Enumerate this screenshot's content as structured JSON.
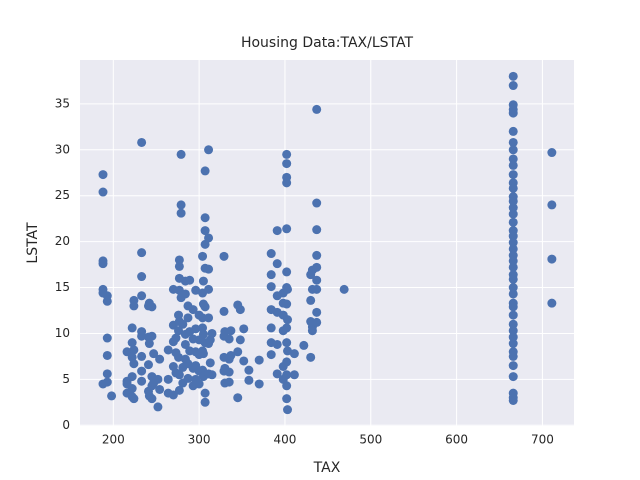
{
  "chart_data": {
    "type": "scatter",
    "title": "Housing Data:TAX/LSTAT",
    "x_label": "TAX",
    "y_label": "LSTAT",
    "x": [
      188,
      188,
      188,
      188,
      188,
      188,
      188,
      193,
      193,
      193,
      193,
      193,
      193,
      198,
      216,
      216,
      216,
      216,
      222,
      222,
      222,
      222,
      222,
      222,
      224,
      224,
      224,
      224,
      224,
      233,
      233,
      233,
      233,
      233,
      233,
      233,
      233,
      233,
      241,
      241,
      241,
      241,
      242,
      242,
      242,
      245,
      245,
      245,
      245,
      245,
      247,
      247,
      252,
      252,
      254,
      254,
      264,
      264,
      264,
      270,
      270,
      270,
      270,
      270,
      273,
      273,
      273,
      276,
      276,
      276,
      277,
      277,
      277,
      277,
      277,
      277,
      277,
      279,
      279,
      279,
      279,
      281,
      281,
      281,
      284,
      284,
      284,
      284,
      284,
      287,
      287,
      287,
      287,
      289,
      289,
      289,
      293,
      293,
      293,
      293,
      296,
      296,
      296,
      296,
      296,
      300,
      300,
      300,
      300,
      300,
      304,
      304,
      304,
      304,
      304,
      304,
      305,
      305,
      305,
      305,
      305,
      307,
      307,
      307,
      307,
      307,
      307,
      307,
      307,
      307,
      311,
      311,
      311,
      311,
      311,
      311,
      311,
      313,
      313,
      315,
      315,
      329,
      329,
      329,
      329,
      329,
      330,
      330,
      330,
      335,
      335,
      335,
      335,
      337,
      337,
      345,
      345,
      345,
      348,
      348,
      352,
      352,
      358,
      358,
      370,
      370,
      384,
      384,
      384,
      384,
      384,
      384,
      384,
      391,
      391,
      391,
      391,
      391,
      391,
      398,
      398,
      398,
      398,
      398,
      398,
      402,
      402,
      402,
      402,
      402,
      402,
      402,
      402,
      402,
      402,
      402,
      402,
      402,
      402,
      403,
      403,
      403,
      403,
      411,
      411,
      422,
      430,
      430,
      430,
      430,
      432,
      432,
      432,
      432,
      437,
      437,
      437,
      437,
      437,
      437,
      437,
      437,
      437,
      469,
      666,
      666,
      666,
      666,
      666,
      666,
      666,
      666,
      666,
      666,
      666,
      666,
      666,
      666,
      666,
      666,
      666,
      666,
      666,
      666,
      666,
      666,
      666,
      666,
      666,
      666,
      666,
      666,
      666,
      666,
      666,
      666,
      666,
      666,
      666,
      666,
      666,
      666,
      666,
      666,
      666,
      666,
      666,
      711,
      711,
      711,
      711
    ],
    "series": [
      {
        "name": "LSTAT",
        "color": "#4c72b0",
        "values": [
          27.3,
          25.4,
          17.9,
          17.6,
          14.8,
          14.4,
          4.5,
          14.1,
          13.5,
          9.5,
          7.6,
          5.6,
          4.7,
          3.2,
          8.0,
          4.8,
          4.5,
          3.5,
          10.6,
          9.0,
          7.4,
          5.3,
          4.0,
          3.1,
          13.6,
          13.0,
          8.2,
          6.7,
          2.9,
          30.8,
          18.8,
          16.2,
          14.1,
          10.2,
          9.7,
          7.5,
          5.9,
          4.8,
          13.0,
          9.6,
          6.6,
          3.7,
          13.3,
          8.9,
          3.2,
          12.9,
          9.7,
          5.3,
          4.3,
          2.9,
          7.8,
          4.6,
          5.0,
          2.0,
          7.2,
          3.9,
          8.2,
          5.0,
          3.5,
          10.9,
          9.1,
          6.4,
          3.3,
          14.8,
          9.5,
          7.9,
          5.7,
          12.0,
          10.3,
          7.4,
          18.0,
          17.3,
          16.0,
          14.7,
          11.3,
          5.5,
          3.8,
          29.5,
          24.0,
          23.1,
          13.9,
          11.0,
          6.3,
          4.6,
          15.7,
          14.3,
          9.9,
          8.8,
          7.2,
          13.0,
          11.7,
          6.7,
          5.1,
          15.8,
          10.2,
          8.1,
          12.6,
          9.4,
          6.2,
          4.3,
          10.5,
          8.0,
          6.5,
          5.0,
          14.7,
          12.0,
          9.3,
          7.7,
          5.9,
          4.5,
          18.4,
          14.4,
          11.7,
          10.6,
          8.1,
          6.0,
          15.7,
          13.2,
          9.9,
          7.8,
          5.3,
          27.7,
          22.6,
          21.2,
          19.7,
          17.1,
          12.9,
          9.0,
          2.5,
          3.5,
          30.0,
          20.4,
          17.0,
          14.8,
          11.7,
          8.9,
          5.6,
          9.3,
          6.8,
          10.0,
          5.5,
          18.4,
          12.4,
          9.7,
          7.4,
          5.9,
          10.2,
          6.2,
          4.6,
          9.4,
          7.2,
          5.8,
          4.7,
          10.3,
          7.6,
          13.1,
          3.0,
          8.0,
          12.6,
          9.3,
          10.5,
          7.0,
          6.0,
          4.9,
          7.1,
          4.5,
          18.7,
          16.4,
          15.1,
          12.6,
          10.6,
          9.0,
          7.7,
          21.2,
          17.6,
          14.1,
          12.3,
          8.8,
          5.6,
          14.4,
          13.3,
          12.0,
          10.3,
          6.4,
          5.0,
          29.5,
          28.5,
          27.0,
          26.4,
          21.4,
          16.7,
          15.0,
          13.2,
          10.6,
          9.0,
          6.9,
          5.5,
          4.3,
          2.9,
          1.7,
          8.1,
          11.5,
          14.8,
          7.8,
          5.5,
          8.7,
          16.4,
          13.6,
          11.3,
          7.4,
          16.9,
          14.8,
          10.7,
          10.3,
          34.4,
          24.2,
          21.3,
          18.5,
          17.2,
          15.8,
          14.8,
          12.3,
          11.2,
          14.8,
          38.0,
          37.0,
          34.9,
          34.4,
          34.0,
          32.0,
          30.8,
          30.0,
          29.0,
          28.3,
          27.3,
          26.4,
          25.8,
          24.9,
          24.4,
          23.7,
          23.0,
          22.1,
          21.2,
          20.6,
          19.9,
          19.2,
          18.5,
          17.9,
          17.2,
          16.4,
          15.9,
          15.0,
          14.3,
          13.3,
          12.9,
          12.0,
          11.0,
          10.3,
          9.6,
          8.9,
          8.0,
          7.5,
          6.5,
          5.3,
          3.5,
          3.0,
          2.7,
          29.7,
          24.0,
          18.1,
          13.3
        ]
      }
    ],
    "xlim": [
      161.2,
      736.8
    ],
    "ylim": [
      -0.08,
      39.78
    ],
    "xticks": [
      200,
      300,
      400,
      500,
      600,
      700
    ],
    "yticks": [
      0,
      5,
      10,
      15,
      20,
      25,
      30,
      35
    ],
    "grid": true,
    "background": "#eaeaf2"
  }
}
